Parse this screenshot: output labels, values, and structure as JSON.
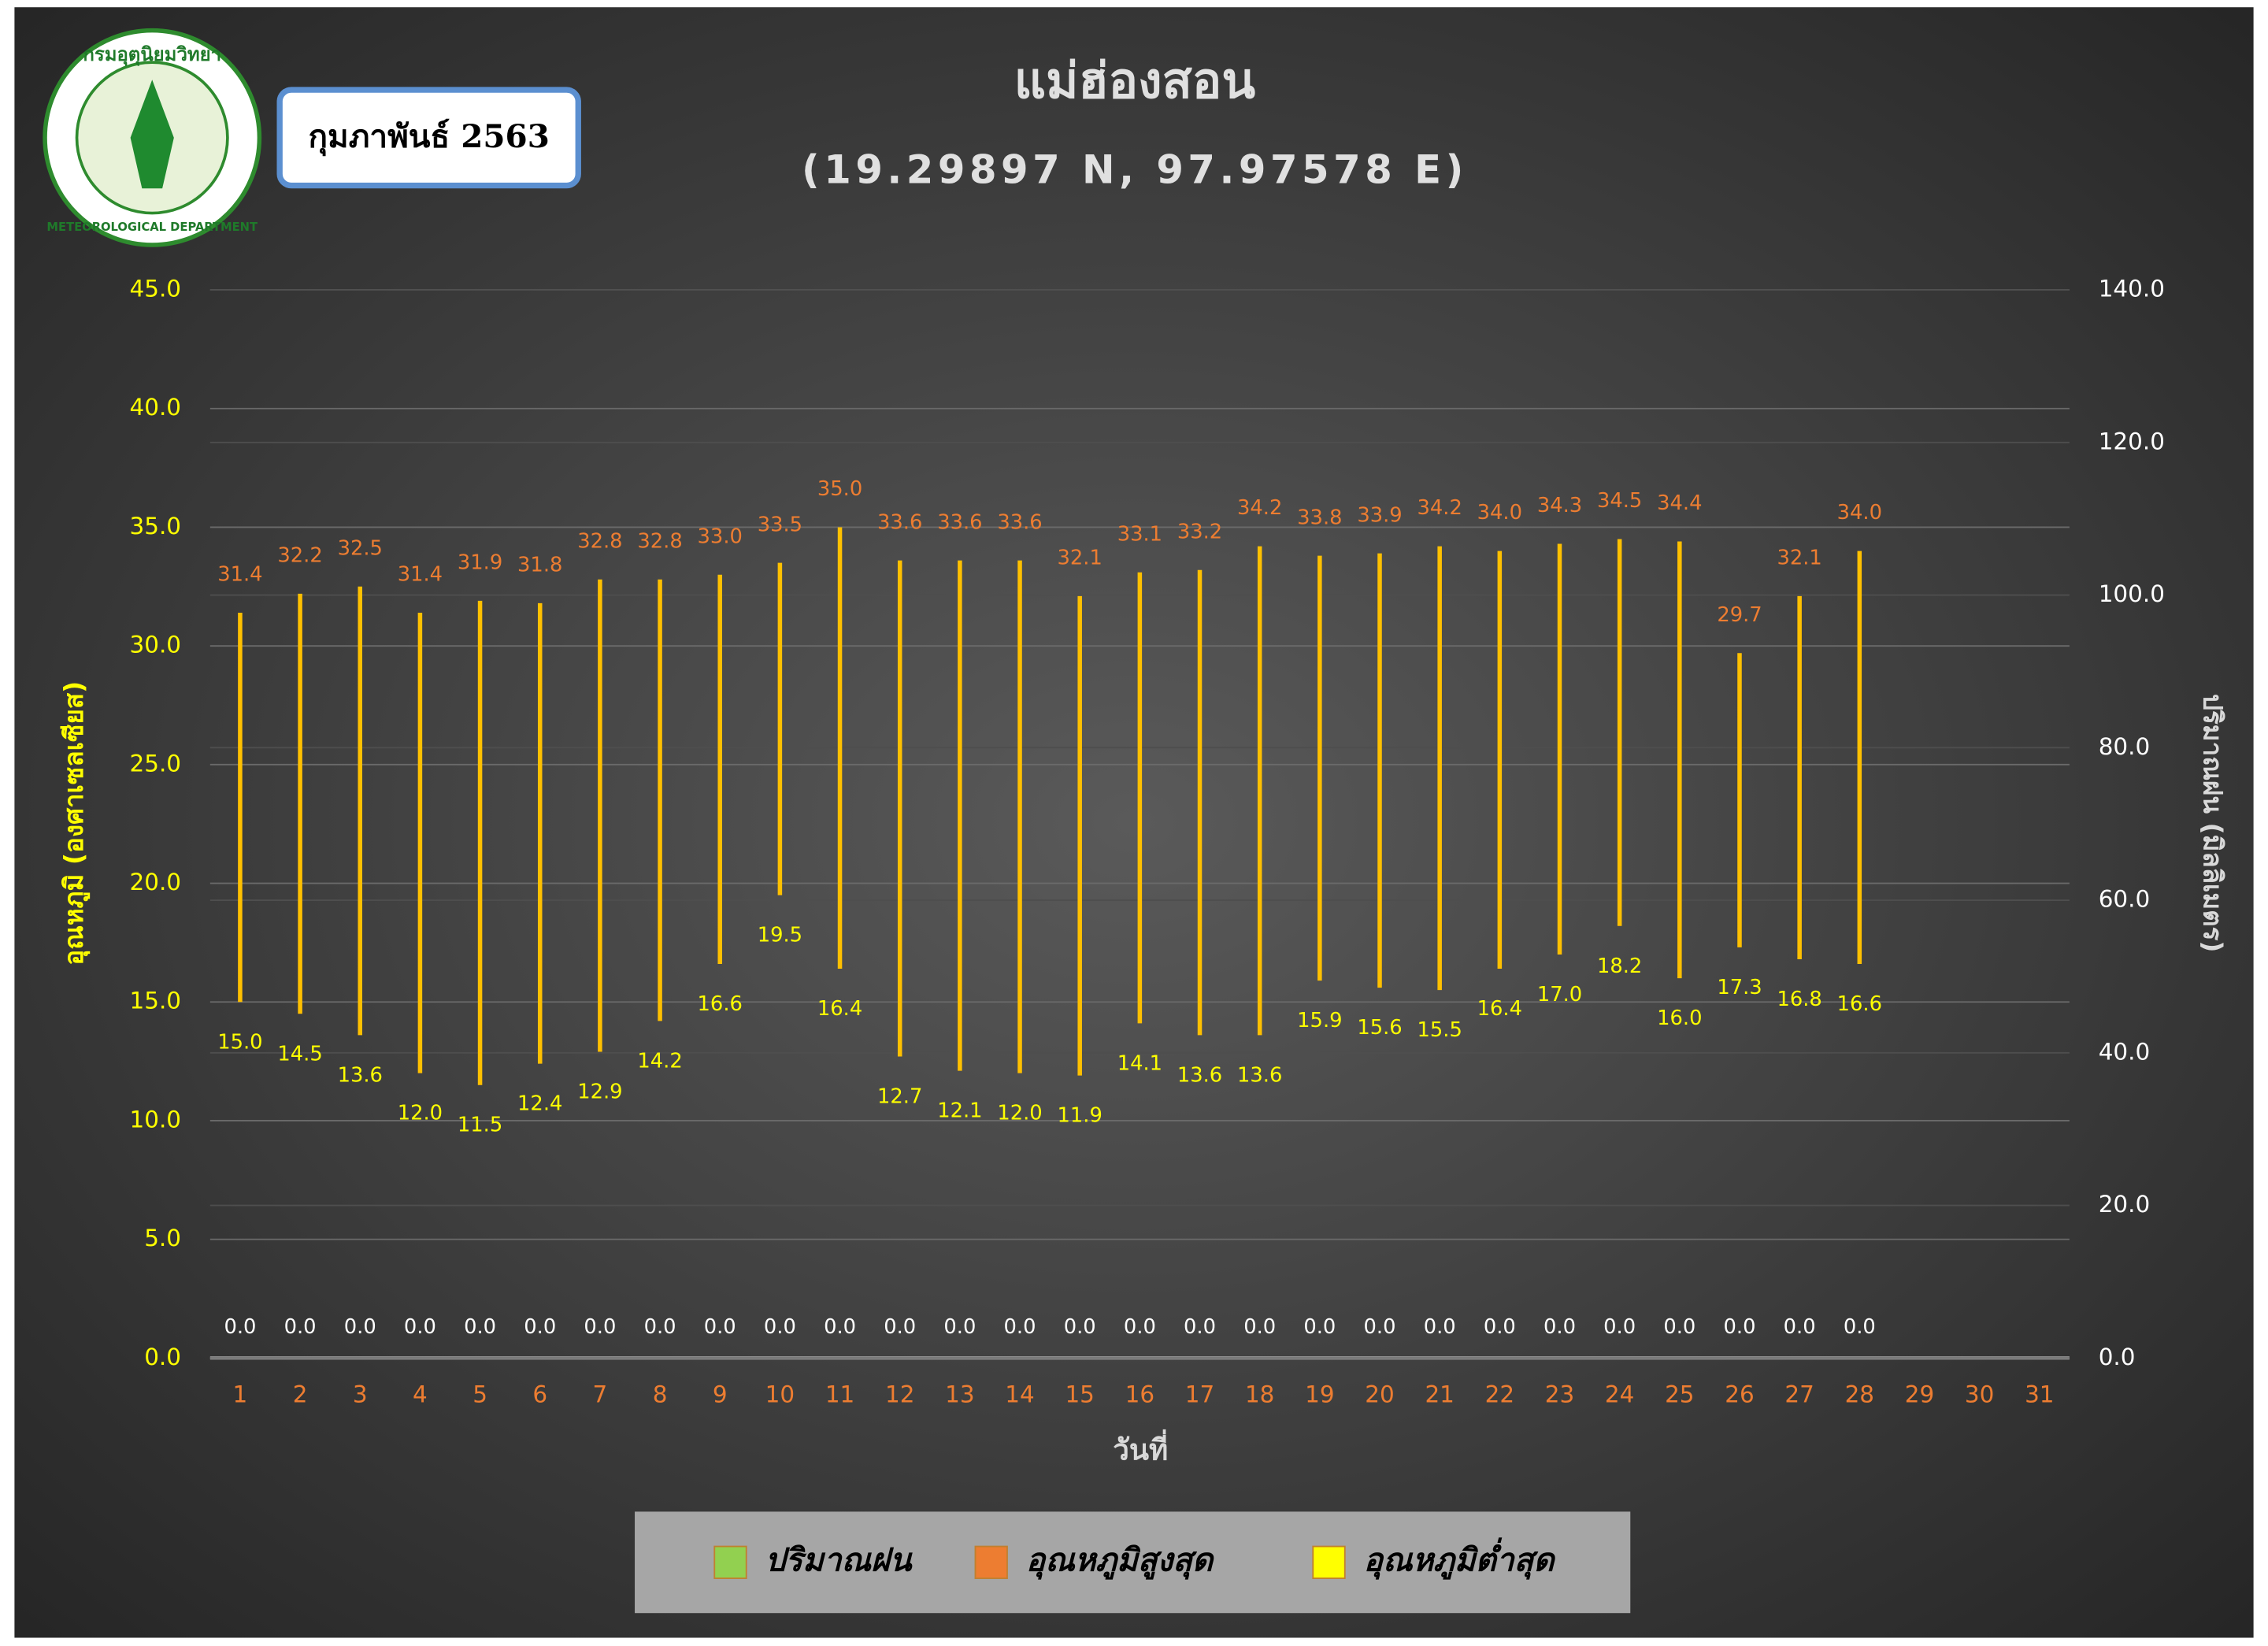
{
  "logo": {
    "top_text": "กรมอุตุนิยมวิทยา",
    "bottom_text": "METEOROLOGICAL DEPARTMENT"
  },
  "date_box": "กุมภาพันธ์ 2563",
  "chart_data": {
    "type": "hilo",
    "title": "แม่ฮ่องสอน",
    "subtitle": "(19.29897 N, 97.97578 E)",
    "x_label": "วันที่",
    "y_label": "อุณหภูมิ (องศาเซลเซียส)",
    "y2_label": "ปริมาณฝน (มิลลิเมตร)",
    "categories": [
      "1",
      "2",
      "3",
      "4",
      "5",
      "6",
      "7",
      "8",
      "9",
      "10",
      "11",
      "12",
      "13",
      "14",
      "15",
      "16",
      "17",
      "18",
      "19",
      "20",
      "21",
      "22",
      "23",
      "24",
      "25",
      "26",
      "27",
      "28",
      "29",
      "30",
      "31"
    ],
    "series": [
      {
        "name": "ปริมาณฝน",
        "color": "#92d050",
        "axis": "y2",
        "label_color": "#ffffff",
        "values": [
          0,
          0,
          0,
          0,
          0,
          0,
          0,
          0,
          0,
          0,
          0,
          0,
          0,
          0,
          0,
          0,
          0,
          0,
          0,
          0,
          0,
          0,
          0,
          0,
          0,
          0,
          0,
          0,
          null,
          null,
          null
        ],
        "value_labels": [
          "0.0",
          "0.0",
          "0.0",
          "0.0",
          "0.0",
          "0.0",
          "0.0",
          "0.0",
          "0.0",
          "0.0",
          "0.0",
          "0.0",
          "0.0",
          "0.0",
          "0.0",
          "0.0",
          "0.0",
          "0.0",
          "0.0",
          "0.0",
          "0.0",
          "0.0",
          "0.0",
          "0.0",
          "0.0",
          "0.0",
          "0.0",
          "0.0",
          null,
          null,
          null
        ]
      },
      {
        "name": "อุณหภูมิสูงสุด",
        "color": "#ed7d31",
        "label_color": "#ed7d31",
        "values": [
          31.4,
          32.2,
          32.5,
          31.4,
          31.9,
          31.8,
          32.8,
          32.8,
          33,
          33.5,
          35,
          33.6,
          33.6,
          33.6,
          32.1,
          33.1,
          33.2,
          34.2,
          33.8,
          33.9,
          34.2,
          34,
          34.3,
          34.5,
          34.4,
          29.7,
          32.1,
          34,
          null,
          null,
          null
        ],
        "value_labels": [
          "31.4",
          "32.2",
          "32.5",
          "31.4",
          "31.9",
          "31.8",
          "32.8",
          "32.8",
          "33.0",
          "33.5",
          "35.0",
          "33.6",
          "33.6",
          "33.6",
          "32.1",
          "33.1",
          "33.2",
          "34.2",
          "33.8",
          "33.9",
          "34.2",
          "34.0",
          "34.3",
          "34.5",
          "34.4",
          "29.7",
          "32.1",
          "34.0",
          null,
          null,
          null
        ]
      },
      {
        "name": "อุณหภูมิต่ำสุด",
        "color": "#ffff00",
        "label_color": "#ffff00",
        "values": [
          15,
          14.5,
          13.6,
          12,
          11.5,
          12.4,
          12.9,
          14.2,
          16.6,
          19.5,
          16.4,
          12.7,
          12.1,
          12,
          11.9,
          14.1,
          13.6,
          13.6,
          15.9,
          15.6,
          15.5,
          16.4,
          17,
          18.2,
          16,
          17.3,
          16.8,
          16.6,
          null,
          null,
          null
        ],
        "value_labels": [
          "15.0",
          "14.5",
          "13.6",
          "12.0",
          "11.5",
          "12.4",
          "12.9",
          "14.2",
          "16.6",
          "19.5",
          "16.4",
          "12.7",
          "12.1",
          "12.0",
          "11.9",
          "14.1",
          "13.6",
          "13.6",
          "15.9",
          "15.6",
          "15.5",
          "16.4",
          "17.0",
          "18.2",
          "16.0",
          "17.3",
          "16.8",
          "16.6",
          null,
          null,
          null
        ]
      }
    ],
    "hilo_color": "#ffc000",
    "ylim": [
      0,
      45
    ],
    "yticks": [
      {
        "value": 0,
        "label": "0.0"
      },
      {
        "value": 5,
        "label": "5.0"
      },
      {
        "value": 10,
        "label": "10.0"
      },
      {
        "value": 15,
        "label": "15.0"
      },
      {
        "value": 20,
        "label": "20.0"
      },
      {
        "value": 25,
        "label": "25.0"
      },
      {
        "value": 30,
        "label": "30.0"
      },
      {
        "value": 35,
        "label": "35.0"
      },
      {
        "value": 40,
        "label": "40.0"
      },
      {
        "value": 45,
        "label": "45.0"
      }
    ],
    "y2lim": [
      0,
      140
    ],
    "y2ticks": [
      {
        "value": 0,
        "label": "0.0"
      },
      {
        "value": 20,
        "label": "20.0"
      },
      {
        "value": 40,
        "label": "40.0"
      },
      {
        "value": 60,
        "label": "60.0"
      },
      {
        "value": 80,
        "label": "80.0"
      },
      {
        "value": 100,
        "label": "100.0"
      },
      {
        "value": 120,
        "label": "120.0"
      },
      {
        "value": 140,
        "label": "140.0"
      }
    ],
    "grid": true,
    "legend": "bottom"
  }
}
